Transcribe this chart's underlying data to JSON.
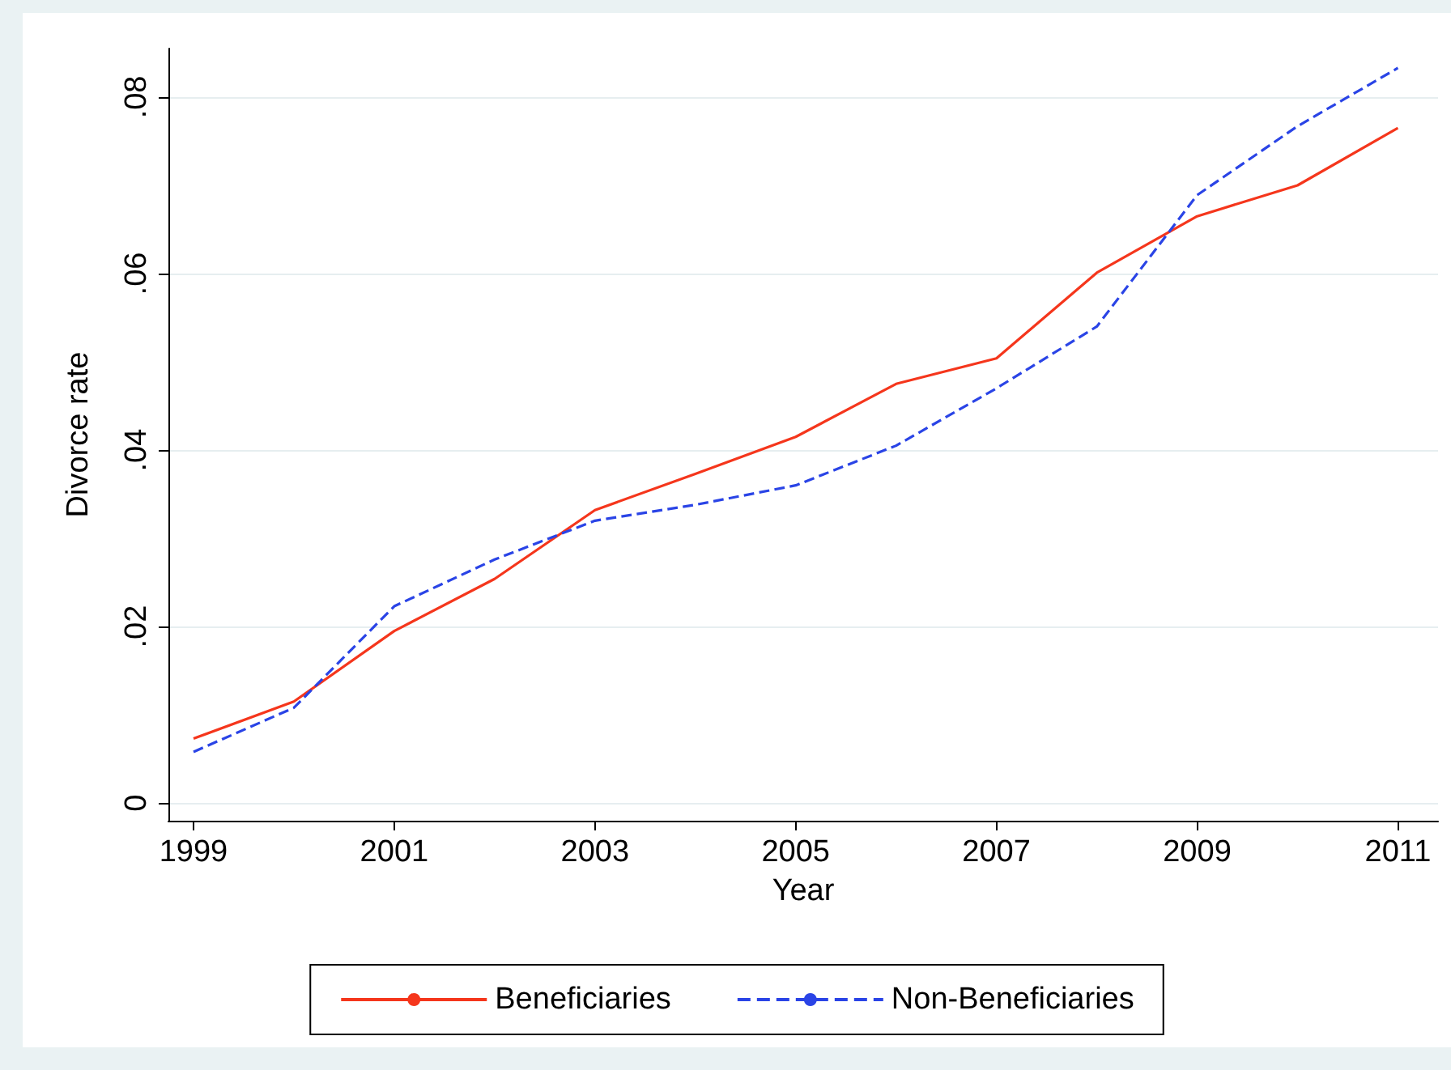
{
  "chart_data": {
    "type": "line",
    "xlabel": "Year",
    "ylabel": "Divorce rate",
    "x": [
      1999,
      2000,
      2001,
      2002,
      2003,
      2004,
      2005,
      2006,
      2007,
      2008,
      2009,
      2010,
      2011
    ],
    "series": [
      {
        "name": "Beneficiaries",
        "color": "#f5361c",
        "line_style": "solid",
        "values": [
          0.0073,
          0.0115,
          0.0195,
          0.0254,
          0.0332,
          0.0373,
          0.0415,
          0.0475,
          0.0504,
          0.0601,
          0.0665,
          0.07,
          0.0765
        ]
      },
      {
        "name": "Non-Beneficiaries",
        "color": "#2a44e6",
        "line_style": "dashed",
        "values": [
          0.0058,
          0.0108,
          0.0223,
          0.0276,
          0.032,
          0.0338,
          0.036,
          0.0405,
          0.047,
          0.054,
          0.0689,
          0.0767,
          0.0833
        ]
      }
    ],
    "xlim": [
      1998.75,
      2011.4
    ],
    "xticks": [
      1999,
      2001,
      2003,
      2005,
      2007,
      2009,
      2011
    ],
    "ylim": [
      -0.002,
      0.0855
    ],
    "yticks": [
      0,
      {
        "value": 0.02,
        "label": ".02"
      },
      {
        "value": 0.04,
        "label": ".04"
      },
      {
        "value": 0.06,
        "label": ".06"
      },
      {
        "value": 0.08,
        "label": ".08"
      }
    ],
    "grid": "y",
    "legend": "bottom",
    "marker": "none"
  }
}
